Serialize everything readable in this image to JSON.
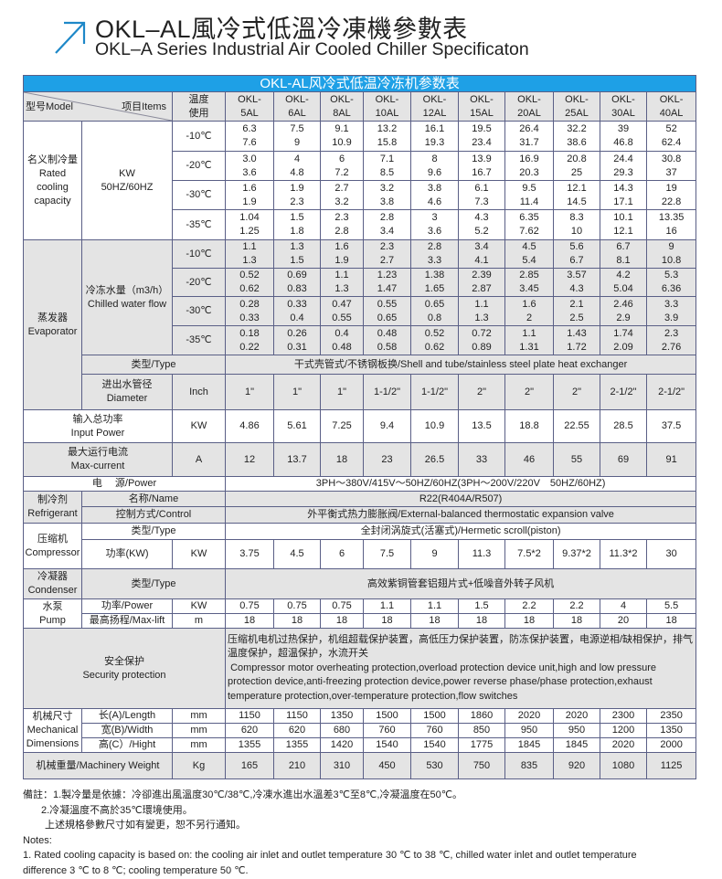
{
  "header": {
    "icon": "arrow-up-right-icon",
    "accent_color": "#1e88c8",
    "title_zh": "OKL–AL風冷式低溫冷凍機參數表",
    "title_en": "OKL–A Series Industrial Air Cooled Chiller Specificaton"
  },
  "table": {
    "banner": "OKL-AL风冷式低温冷冻机参数表",
    "banner_color": "#1ea0e6",
    "head": {
      "model": "型号Model",
      "items": "项目Items",
      "temp": "温度\n使用"
    },
    "models": [
      "OKL-\n5AL",
      "OKL-\n6AL",
      "OKL-\n8AL",
      "OKL-\n10AL",
      "OKL-\n12AL",
      "OKL-\n15AL",
      "OKL-\n20AL",
      "OKL-\n25AL",
      "OKL-\n30AL",
      "OKL-\n40AL"
    ],
    "cooling": {
      "label": "名义制冷量\nRated\ncooling\ncapacity",
      "unit": "KW\n50HZ/60HZ",
      "rows": [
        {
          "temp": "-10℃",
          "values": [
            [
              "6.3",
              "7.6"
            ],
            [
              "7.5",
              "9"
            ],
            [
              "9.1",
              "10.9"
            ],
            [
              "13.2",
              "15.8"
            ],
            [
              "16.1",
              "19.3"
            ],
            [
              "19.5",
              "23.4"
            ],
            [
              "26.4",
              "31.7"
            ],
            [
              "32.2",
              "38.6"
            ],
            [
              "39",
              "46.8"
            ],
            [
              "52",
              "62.4"
            ]
          ]
        },
        {
          "temp": "-20℃",
          "values": [
            [
              "3.0",
              "3.6"
            ],
            [
              "4",
              "4.8"
            ],
            [
              "6",
              "7.2"
            ],
            [
              "7.1",
              "8.5"
            ],
            [
              "8",
              "9.6"
            ],
            [
              "13.9",
              "16.7"
            ],
            [
              "16.9",
              "20.3"
            ],
            [
              "20.8",
              "25"
            ],
            [
              "24.4",
              "29.3"
            ],
            [
              "30.8",
              "37"
            ]
          ]
        },
        {
          "temp": "-30℃",
          "values": [
            [
              "1.6",
              "1.9"
            ],
            [
              "1.9",
              "2.3"
            ],
            [
              "2.7",
              "3.2"
            ],
            [
              "3.2",
              "3.8"
            ],
            [
              "3.8",
              "4.6"
            ],
            [
              "6.1",
              "7.3"
            ],
            [
              "9.5",
              "11.4"
            ],
            [
              "12.1",
              "14.5"
            ],
            [
              "14.3",
              "17.1"
            ],
            [
              "19",
              "22.8"
            ]
          ]
        },
        {
          "temp": "-35℃",
          "values": [
            [
              "1.04",
              "1.25"
            ],
            [
              "1.5",
              "1.8"
            ],
            [
              "2.3",
              "2.8"
            ],
            [
              "2.8",
              "3.4"
            ],
            [
              "3",
              "3.6"
            ],
            [
              "4.3",
              "5.2"
            ],
            [
              "6.35",
              "7.62"
            ],
            [
              "8.3",
              "10"
            ],
            [
              "10.1",
              "12.1"
            ],
            [
              "13.35",
              "16"
            ]
          ]
        }
      ]
    },
    "evaporator": {
      "label": "蒸发器\nEvaporator",
      "flow_label": "冷冻水量（m3/h）\nChilled water flow",
      "rows": [
        {
          "temp": "-10℃",
          "values": [
            [
              "1.1",
              "1.3"
            ],
            [
              "1.3",
              "1.5"
            ],
            [
              "1.6",
              "1.9"
            ],
            [
              "2.3",
              "2.7"
            ],
            [
              "2.8",
              "3.3"
            ],
            [
              "3.4",
              "4.1"
            ],
            [
              "4.5",
              "5.4"
            ],
            [
              "5.6",
              "6.7"
            ],
            [
              "6.7",
              "8.1"
            ],
            [
              "9",
              "10.8"
            ]
          ]
        },
        {
          "temp": "-20℃",
          "values": [
            [
              "0.52",
              "0.62"
            ],
            [
              "0.69",
              "0.83"
            ],
            [
              "1.1",
              "1.3"
            ],
            [
              "1.23",
              "1.47"
            ],
            [
              "1.38",
              "1.65"
            ],
            [
              "2.39",
              "2.87"
            ],
            [
              "2.85",
              "3.45"
            ],
            [
              "3.57",
              "4.3"
            ],
            [
              "4.2",
              "5.04"
            ],
            [
              "5.3",
              "6.36"
            ]
          ]
        },
        {
          "temp": "-30℃",
          "values": [
            [
              "0.28",
              "0.33"
            ],
            [
              "0.33",
              "0.4"
            ],
            [
              "0.47",
              "0.55"
            ],
            [
              "0.55",
              "0.65"
            ],
            [
              "0.65",
              "0.8"
            ],
            [
              "1.1",
              "1.3"
            ],
            [
              "1.6",
              "2"
            ],
            [
              "2.1",
              "2.5"
            ],
            [
              "2.46",
              "2.9"
            ],
            [
              "3.3",
              "3.9"
            ]
          ]
        },
        {
          "temp": "-35℃",
          "values": [
            [
              "0.18",
              "0.22"
            ],
            [
              "0.26",
              "0.31"
            ],
            [
              "0.4",
              "0.48"
            ],
            [
              "0.48",
              "0.58"
            ],
            [
              "0.52",
              "0.62"
            ],
            [
              "0.72",
              "0.89"
            ],
            [
              "1.1",
              "1.31"
            ],
            [
              "1.43",
              "1.72"
            ],
            [
              "1.74",
              "2.09"
            ],
            [
              "2.3",
              "2.76"
            ]
          ]
        }
      ],
      "type_label": "类型/Type",
      "type_value": "干式壳管式/不锈钢板换/Shell and tube/stainless steel plate heat exchanger",
      "diameter_label": "进出水管径\nDiameter",
      "diameter_unit": "Inch",
      "diameter_values": [
        "1\"",
        "1\"",
        "1\"",
        "1-1/2\"",
        "1-1/2\"",
        "2\"",
        "2\"",
        "2\"",
        "2-1/2\"",
        "2-1/2\""
      ]
    },
    "input_power": {
      "label": "输入总功率\nInput Power",
      "unit": "KW",
      "values": [
        "4.86",
        "5.61",
        "7.25",
        "9.4",
        "10.9",
        "13.5",
        "18.8",
        "22.55",
        "28.5",
        "37.5"
      ]
    },
    "max_current": {
      "label": "最大运行电流\nMax-current",
      "unit": "A",
      "values": [
        "12",
        "13.7",
        "18",
        "23",
        "26.5",
        "33",
        "46",
        "55",
        "69",
        "91"
      ]
    },
    "power_supply": {
      "label": "电　 源/Power",
      "value": "3PH～380V/415V～50HZ/60HZ(3PH～200V/220V　50HZ/60HZ)"
    },
    "refrigerant": {
      "label": "制冷剂\nRefrigerant",
      "name_label": "名称/Name",
      "name_value": "R22(R404A/R507)",
      "control_label": "控制方式/Control",
      "control_value": "外平衡式热力膨胀阀/External-balanced thermostatic expansion valve"
    },
    "compressor": {
      "label": "压缩机\nCompressor",
      "type_label": "类型/Type",
      "type_value": "全封闭涡旋式(活塞式)/Hermetic scroll(piston)",
      "power_label": "功率(KW)",
      "power_unit": "KW",
      "power_values": [
        "3.75",
        "4.5",
        "6",
        "7.5",
        "9",
        "11.3",
        "7.5*2",
        "9.37*2",
        "11.3*2",
        "30"
      ]
    },
    "condenser": {
      "label": "冷凝器\nCondenser",
      "type_label": "类型/Type",
      "type_value": "高效紫铜管套铝翅片式+低噪音外转子风机"
    },
    "pump": {
      "label": "水泵\nPump",
      "power_label": "功率/Power",
      "power_unit": "KW",
      "power_values": [
        "0.75",
        "0.75",
        "0.75",
        "1.1",
        "1.1",
        "1.5",
        "2.2",
        "2.2",
        "4",
        "5.5"
      ],
      "lift_label": "最高扬程/Max-lift",
      "lift_unit": "m",
      "lift_values": [
        "18",
        "18",
        "18",
        "18",
        "18",
        "18",
        "18",
        "18",
        "20",
        "18"
      ]
    },
    "security": {
      "label": "安全保护\nSecurity protection",
      "text_zh": "压缩机电机过热保护，机组超载保护装置，高低压力保护装置，防冻保护装置，电源逆相/缺相保护，排气温度保护，超温保护，水流开关",
      "text_en": " Compressor motor overheating protection,overload protection device unit,high and low pressure protection device,anti-freezing protection device,power reverse phase/phase protection,exhaust temperature protection,over-temperature protection,flow switches"
    },
    "dimensions": {
      "label": "机械尺寸\nMechanical\nDimensions",
      "rows": [
        {
          "label": "长(A)/Length",
          "unit": "mm",
          "values": [
            "1150",
            "1150",
            "1350",
            "1500",
            "1500",
            "1860",
            "2020",
            "2020",
            "2300",
            "2350"
          ]
        },
        {
          "label": "宽(B)/Width",
          "unit": "mm",
          "values": [
            "620",
            "620",
            "680",
            "760",
            "760",
            "850",
            "950",
            "950",
            "1200",
            "1350"
          ]
        },
        {
          "label": "高(C）/Hight",
          "unit": "mm",
          "values": [
            "1355",
            "1355",
            "1420",
            "1540",
            "1540",
            "1775",
            "1845",
            "1845",
            "2020",
            "2000"
          ]
        }
      ]
    },
    "weight": {
      "label": "机械重量/Machinery Weight",
      "unit": "Kg",
      "values": [
        "165",
        "210",
        "310",
        "450",
        "530",
        "750",
        "835",
        "920",
        "1080",
        "1125"
      ]
    }
  },
  "notes": [
    "備註：1.製冷量是依據：冷卻進出風溫度30℃/38℃,冷凍水進出水溫差3℃至8℃,冷凝溫度在50℃。",
    "2.冷凝溫度不高於35℃環境使用。",
    "上述規格參數尺寸如有變更，恕不另行通知。",
    "Notes:",
    "1. Rated cooling capacity is based on: the cooling air inlet and outlet temperature 30 ℃ to 38 ℃, chilled water inlet and outlet temperature",
    "difference 3 ℃ to 8 ℃; cooling temperature 50 ℃."
  ]
}
